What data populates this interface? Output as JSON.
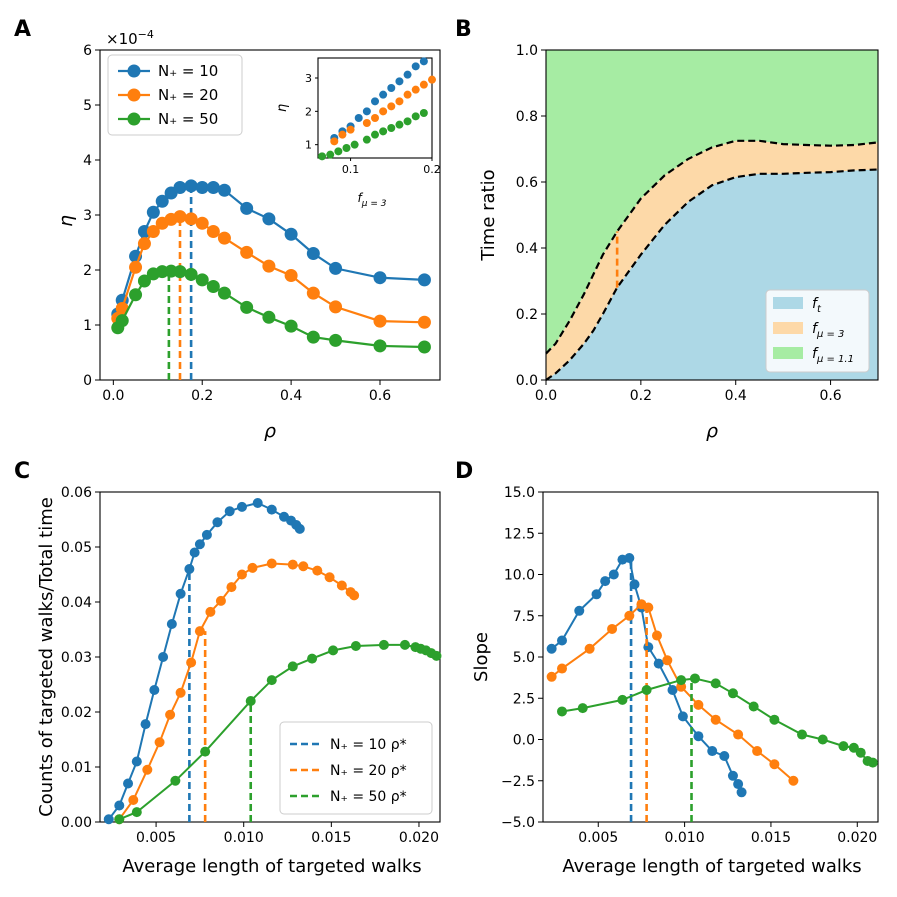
{
  "colors": {
    "blue": "#1f77b4",
    "orange": "#ff7f0e",
    "green": "#2ca02c",
    "fill_blue": "#add8e6",
    "fill_orange": "#fdd9a8",
    "fill_green": "#a6eca3"
  },
  "chart_data": [
    {
      "panel": "A",
      "type": "line",
      "xlabel": "ρ",
      "ylabel": "η",
      "scale_label": "×10",
      "scale_exp": "−4",
      "xlim": [
        -0.03,
        0.735
      ],
      "ylim": [
        0,
        6
      ],
      "xticks": [
        "0.0",
        "0.2",
        "0.4",
        "0.6"
      ],
      "xtick_values": [
        0,
        0.2,
        0.4,
        0.6
      ],
      "yticks": [
        "0",
        "1",
        "2",
        "3",
        "4",
        "5",
        "6"
      ],
      "ytick_values": [
        0,
        1,
        2,
        3,
        4,
        5,
        6
      ],
      "legend": [
        {
          "label": "N₊ = 10",
          "color": "blue"
        },
        {
          "label": "N₊ = 20",
          "color": "orange"
        },
        {
          "label": "N₊ = 50",
          "color": "green"
        }
      ],
      "series": [
        {
          "name": "N₊ = 10",
          "color": "blue",
          "x": [
            0.01,
            0.02,
            0.05,
            0.07,
            0.09,
            0.11,
            0.13,
            0.15,
            0.175,
            0.2,
            0.225,
            0.25,
            0.3,
            0.35,
            0.4,
            0.45,
            0.5,
            0.6,
            0.7
          ],
          "y": [
            1.2,
            1.45,
            2.25,
            2.7,
            3.05,
            3.25,
            3.4,
            3.5,
            3.53,
            3.5,
            3.5,
            3.45,
            3.12,
            2.93,
            2.65,
            2.3,
            2.03,
            1.86,
            1.82
          ],
          "rho_star": 0.175,
          "eta_star": 3.53
        },
        {
          "name": "N₊ = 20",
          "color": "orange",
          "x": [
            0.01,
            0.02,
            0.05,
            0.07,
            0.09,
            0.11,
            0.13,
            0.15,
            0.175,
            0.2,
            0.225,
            0.25,
            0.3,
            0.35,
            0.4,
            0.45,
            0.5,
            0.6,
            0.7
          ],
          "y": [
            1.12,
            1.3,
            2.05,
            2.48,
            2.7,
            2.85,
            2.92,
            2.97,
            2.93,
            2.85,
            2.7,
            2.58,
            2.32,
            2.07,
            1.9,
            1.58,
            1.33,
            1.07,
            1.05
          ],
          "rho_star": 0.15,
          "eta_star": 2.97
        },
        {
          "name": "N₊ = 50",
          "color": "green",
          "x": [
            0.01,
            0.02,
            0.05,
            0.07,
            0.09,
            0.11,
            0.13,
            0.15,
            0.175,
            0.2,
            0.225,
            0.25,
            0.3,
            0.35,
            0.4,
            0.45,
            0.5,
            0.6,
            0.7
          ],
          "y": [
            0.95,
            1.08,
            1.55,
            1.8,
            1.93,
            1.97,
            1.98,
            1.97,
            1.92,
            1.82,
            1.7,
            1.58,
            1.32,
            1.14,
            0.98,
            0.78,
            0.72,
            0.62,
            0.6
          ],
          "rho_star": 0.125,
          "eta_star": 1.98
        }
      ]
    },
    {
      "panel": "A-inset",
      "type": "scatter",
      "xlabel": "f",
      "xlabel_sub": "μ = 3",
      "ylabel": "η",
      "xlim": [
        0.06,
        0.2
      ],
      "ylim": [
        0.6,
        3.6
      ],
      "xticks": [
        "0.1",
        "0.2"
      ],
      "xtick_values": [
        0.1,
        0.2
      ],
      "yticks": [
        "1",
        "2",
        "3"
      ],
      "ytick_values": [
        1,
        2,
        3
      ],
      "series": [
        {
          "name": "N₊ = 10",
          "color": "blue",
          "x": [
            0.08,
            0.09,
            0.1,
            0.11,
            0.12,
            0.13,
            0.14,
            0.15,
            0.16,
            0.17,
            0.18,
            0.19
          ],
          "y": [
            1.2,
            1.4,
            1.55,
            1.8,
            2.0,
            2.3,
            2.5,
            2.7,
            2.9,
            3.1,
            3.35,
            3.5
          ]
        },
        {
          "name": "N₊ = 20",
          "color": "orange",
          "x": [
            0.08,
            0.09,
            0.1,
            0.12,
            0.13,
            0.14,
            0.15,
            0.16,
            0.17,
            0.18,
            0.19,
            0.2
          ],
          "y": [
            1.1,
            1.3,
            1.45,
            1.65,
            1.8,
            2.0,
            2.15,
            2.3,
            2.5,
            2.65,
            2.8,
            2.95
          ]
        },
        {
          "name": "N₊ = 50",
          "color": "green",
          "x": [
            0.065,
            0.075,
            0.085,
            0.095,
            0.105,
            0.12,
            0.13,
            0.14,
            0.15,
            0.16,
            0.17,
            0.18,
            0.19
          ],
          "y": [
            0.65,
            0.7,
            0.8,
            0.9,
            1.0,
            1.15,
            1.3,
            1.4,
            1.5,
            1.6,
            1.7,
            1.85,
            1.95
          ]
        }
      ]
    },
    {
      "panel": "B",
      "type": "area",
      "xlabel": "ρ",
      "ylabel": "Time ratio",
      "xlim": [
        0.0,
        0.7
      ],
      "ylim": [
        0.0,
        1.0
      ],
      "xticks": [
        "0.0",
        "0.2",
        "0.4",
        "0.6"
      ],
      "xtick_values": [
        0,
        0.2,
        0.4,
        0.6
      ],
      "yticks": [
        "0.0",
        "0.2",
        "0.4",
        "0.6",
        "0.8",
        "1.0"
      ],
      "ytick_values": [
        0,
        0.2,
        0.4,
        0.6,
        0.8,
        1.0
      ],
      "legend": [
        {
          "label": "f",
          "sub": "t",
          "color": "fill_blue"
        },
        {
          "label": "f",
          "sub": "μ = 3",
          "color": "fill_orange"
        },
        {
          "label": "f",
          "sub": "μ = 1.1",
          "color": "fill_green"
        }
      ],
      "x": [
        0.0,
        0.02,
        0.05,
        0.08,
        0.1,
        0.12,
        0.15,
        0.2,
        0.25,
        0.3,
        0.35,
        0.4,
        0.45,
        0.5,
        0.55,
        0.6,
        0.65,
        0.7
      ],
      "lower": [
        0.0,
        0.02,
        0.06,
        0.11,
        0.15,
        0.2,
        0.28,
        0.38,
        0.47,
        0.54,
        0.59,
        0.615,
        0.625,
        0.625,
        0.628,
        0.63,
        0.635,
        0.638
      ],
      "upper": [
        0.08,
        0.11,
        0.18,
        0.26,
        0.32,
        0.38,
        0.45,
        0.55,
        0.62,
        0.67,
        0.705,
        0.725,
        0.725,
        0.715,
        0.712,
        0.71,
        0.712,
        0.72
      ],
      "rho_star": 0.15
    },
    {
      "panel": "C",
      "type": "line",
      "xlabel": "Average length of targeted walks",
      "ylabel": "Counts of targeted walks/Total time",
      "xlim": [
        0.0018,
        0.0212
      ],
      "ylim": [
        0.0,
        0.06
      ],
      "xticks": [
        "0.005",
        "0.010",
        "0.015",
        "0.020"
      ],
      "xtick_values": [
        0.005,
        0.01,
        0.015,
        0.02
      ],
      "yticks": [
        "0.00",
        "0.01",
        "0.02",
        "0.03",
        "0.04",
        "0.05",
        "0.06"
      ],
      "ytick_values": [
        0,
        0.01,
        0.02,
        0.03,
        0.04,
        0.05,
        0.06
      ],
      "legend": [
        {
          "label": "N₊ = 10 ρ*",
          "color": "blue"
        },
        {
          "label": "N₊ = 20 ρ*",
          "color": "orange"
        },
        {
          "label": "N₊ = 50 ρ*",
          "color": "green"
        }
      ],
      "series": [
        {
          "name": "N₊ = 10",
          "color": "blue",
          "x": [
            0.0023,
            0.0029,
            0.0034,
            0.0039,
            0.0044,
            0.0049,
            0.0054,
            0.0059,
            0.0064,
            0.0069,
            0.0072,
            0.0075,
            0.0079,
            0.0085,
            0.0092,
            0.0099,
            0.0108,
            0.0116,
            0.0123,
            0.0127,
            0.013,
            0.0132
          ],
          "y": [
            0.0005,
            0.003,
            0.007,
            0.011,
            0.0178,
            0.024,
            0.03,
            0.036,
            0.0415,
            0.046,
            0.049,
            0.0505,
            0.0522,
            0.0545,
            0.0565,
            0.0573,
            0.058,
            0.0568,
            0.0555,
            0.0548,
            0.054,
            0.0533
          ],
          "x_star": 0.0069
        },
        {
          "name": "N₊ = 20",
          "color": "orange",
          "x": [
            0.0029,
            0.0037,
            0.0045,
            0.0052,
            0.0058,
            0.0064,
            0.007,
            0.0075,
            0.0081,
            0.0087,
            0.0093,
            0.0099,
            0.0105,
            0.0116,
            0.0128,
            0.0134,
            0.0142,
            0.0149,
            0.0156,
            0.0161,
            0.0163
          ],
          "y": [
            0.0005,
            0.004,
            0.0095,
            0.0145,
            0.0195,
            0.0235,
            0.029,
            0.0347,
            0.0382,
            0.0402,
            0.0427,
            0.045,
            0.0462,
            0.047,
            0.0468,
            0.0465,
            0.0457,
            0.0445,
            0.043,
            0.0418,
            0.0412
          ],
          "x_star": 0.0078
        },
        {
          "name": "N₊ = 50",
          "color": "green",
          "x": [
            0.0029,
            0.0039,
            0.0061,
            0.0078,
            0.0104,
            0.0116,
            0.0128,
            0.0139,
            0.0151,
            0.0164,
            0.018,
            0.0192,
            0.0198,
            0.0201,
            0.0204,
            0.0207,
            0.021
          ],
          "y": [
            0.0005,
            0.0018,
            0.0075,
            0.0128,
            0.022,
            0.0258,
            0.0283,
            0.0297,
            0.0312,
            0.032,
            0.0322,
            0.0322,
            0.0318,
            0.0315,
            0.0312,
            0.0307,
            0.0302
          ],
          "x_star": 0.0104
        }
      ]
    },
    {
      "panel": "D",
      "type": "line",
      "xlabel": "Average length of targeted walks",
      "ylabel": "Slope",
      "xlim": [
        0.0018,
        0.0212
      ],
      "ylim": [
        -5.0,
        15.0
      ],
      "xticks": [
        "0.005",
        "0.010",
        "0.015",
        "0.020"
      ],
      "xtick_values": [
        0.005,
        0.01,
        0.015,
        0.02
      ],
      "yticks": [
        "−5.0",
        "−2.5",
        "0.0",
        "2.5",
        "5.0",
        "7.5",
        "10.0",
        "12.5",
        "15.0"
      ],
      "ytick_values": [
        -5,
        -2.5,
        0,
        2.5,
        5,
        7.5,
        10,
        12.5,
        15
      ],
      "series": [
        {
          "name": "N₊ = 10",
          "color": "blue",
          "x": [
            0.0023,
            0.0029,
            0.0039,
            0.0049,
            0.0054,
            0.0059,
            0.0064,
            0.0068,
            0.0071,
            0.0075,
            0.0079,
            0.0085,
            0.0093,
            0.0099,
            0.0108,
            0.0116,
            0.0123,
            0.0128,
            0.0131,
            0.0133
          ],
          "y": [
            5.5,
            6.0,
            7.8,
            8.8,
            9.6,
            10.0,
            10.9,
            11.0,
            9.4,
            8.0,
            5.6,
            4.6,
            3.0,
            1.4,
            0.2,
            -0.7,
            -1.0,
            -2.2,
            -2.7,
            -3.2
          ],
          "x_star": 0.0069
        },
        {
          "name": "N₊ = 20",
          "color": "orange",
          "x": [
            0.0023,
            0.0029,
            0.0045,
            0.0058,
            0.0068,
            0.0075,
            0.0079,
            0.0084,
            0.009,
            0.0098,
            0.0108,
            0.0118,
            0.0131,
            0.0142,
            0.0152,
            0.0163
          ],
          "y": [
            3.8,
            4.3,
            5.5,
            6.7,
            7.5,
            8.2,
            8.0,
            6.3,
            4.8,
            3.2,
            2.1,
            1.2,
            0.3,
            -0.7,
            -1.5,
            -2.5
          ],
          "x_star": 0.0078
        },
        {
          "name": "N₊ = 50",
          "color": "green",
          "x": [
            0.0029,
            0.0041,
            0.0064,
            0.0078,
            0.0098,
            0.0106,
            0.0118,
            0.0128,
            0.014,
            0.0152,
            0.0168,
            0.018,
            0.0192,
            0.0198,
            0.0202,
            0.0206,
            0.0209
          ],
          "y": [
            1.7,
            1.9,
            2.4,
            3.0,
            3.6,
            3.7,
            3.4,
            2.8,
            2.0,
            1.2,
            0.3,
            0.0,
            -0.4,
            -0.5,
            -0.8,
            -1.3,
            -1.4
          ],
          "x_star": 0.0104
        }
      ]
    }
  ]
}
